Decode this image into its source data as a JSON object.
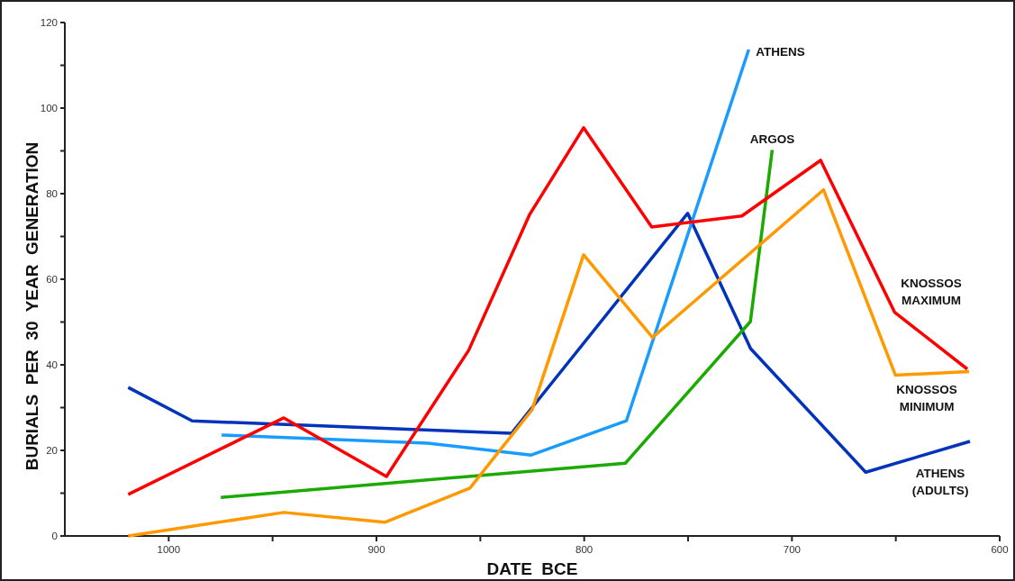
{
  "chart_data": {
    "type": "line",
    "xlabel": "DATE  BCE",
    "ylabel": "BURIALS  PER  30  YEAR  GENERATION",
    "xlim": [
      1050,
      600
    ],
    "xticks": [
      1000,
      {
        "value": 950,
        "label": null
      },
      900,
      {
        "value": 850,
        "label": null
      },
      800,
      {
        "value": 750,
        "label": null
      },
      700,
      {
        "value": 650,
        "label": null
      },
      600
    ],
    "ylim": [
      0,
      120
    ],
    "yticks": [
      0,
      {
        "value": 10,
        "label": null
      },
      20,
      {
        "value": 30,
        "label": null
      },
      40,
      {
        "value": 50,
        "label": null
      },
      60,
      {
        "value": 70,
        "label": null
      },
      80,
      {
        "value": 90,
        "label": null
      },
      100,
      {
        "value": 110,
        "label": null
      },
      120
    ],
    "grid": false,
    "marker": "none",
    "line_style": "solid",
    "series": [
      {
        "name": "ATHENS (ADULTS)",
        "color": "#0033bb",
        "x": [
          1019.5,
          988.7,
          835,
          750.2,
          719.9,
          664.5,
          614.3
        ],
        "values": [
          34.7,
          26.9,
          24,
          75.4,
          43.8,
          14.9,
          22.1
        ]
      },
      {
        "name": "ATHENS",
        "color": "#1a9cff",
        "x": [
          974.5,
          875.3,
          825.5,
          779.7,
          720.8
        ],
        "values": [
          23.6,
          21.7,
          18.9,
          26.9,
          113.7
        ]
      },
      {
        "name": "ARGOS",
        "color": "#1aaa00",
        "x": [
          974.9,
          780.2,
          720,
          709.5
        ],
        "values": [
          9,
          17,
          50.1,
          90.2
        ]
      },
      {
        "name": "KNOSSOS MAXIMUM",
        "color": "#ff0000",
        "x": [
          1019.5,
          944.6,
          895.2,
          855.6,
          826.2,
          800.3,
          767.5,
          724.1,
          686.2,
          650.6,
          615.6
        ],
        "values": [
          9.7,
          27.6,
          13.9,
          43.4,
          75.2,
          95.4,
          72.2,
          74.8,
          87.8,
          52.3,
          39
        ]
      },
      {
        "name": "KNOSSOS MINIMUM",
        "color": "#ff9900",
        "x": [
          1019.5,
          944.6,
          896,
          855,
          825.1,
          800.3,
          767.1,
          684.8,
          650.2,
          614.7
        ],
        "values": [
          0,
          5.5,
          3.2,
          11.2,
          29.5,
          65.7,
          46.4,
          80.9,
          37.6,
          38.4
        ]
      }
    ]
  }
}
